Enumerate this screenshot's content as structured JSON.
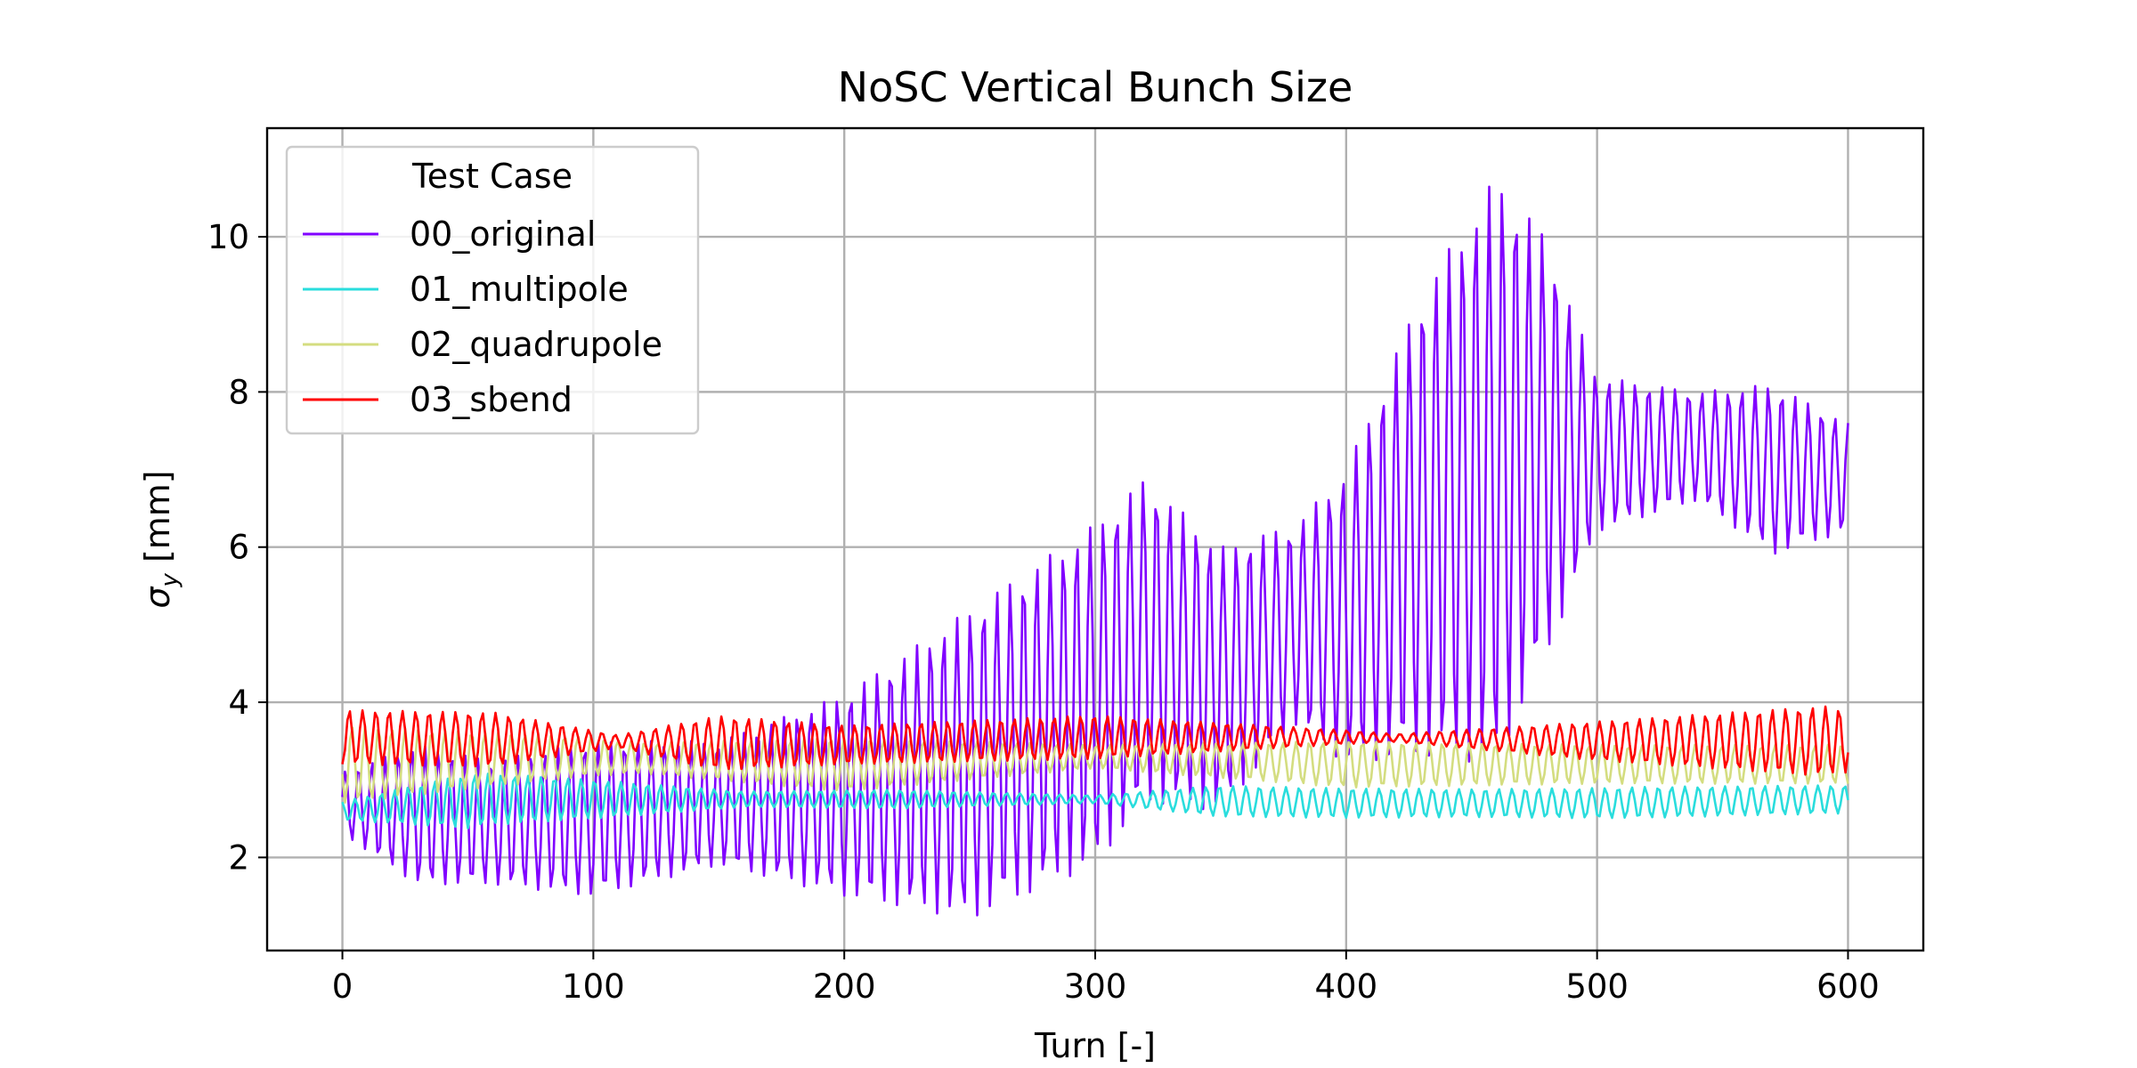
{
  "chart_data": {
    "type": "line",
    "title": "NoSC Vertical Bunch Size",
    "xlabel": "Turn [-]",
    "ylabel_symbol": "σ",
    "ylabel_sub": "y",
    "ylabel_unit": " [mm]",
    "xlim": [
      -30,
      630
    ],
    "ylim": [
      0.8,
      11.4
    ],
    "xticks": [
      0,
      100,
      200,
      300,
      400,
      500,
      600
    ],
    "yticks": [
      2,
      4,
      6,
      8,
      10
    ],
    "grid": true,
    "legend": {
      "title": "Test Case",
      "placement": "top-left"
    },
    "turn_range": [
      0,
      600
    ],
    "series": [
      {
        "name": "00_original",
        "color": "#8000ff",
        "oscillation_period_turns": 5.3,
        "envelope_center": [
          [
            0,
            2.7
          ],
          [
            30,
            2.55
          ],
          [
            60,
            2.45
          ],
          [
            100,
            2.5
          ],
          [
            150,
            2.7
          ],
          [
            200,
            2.8
          ],
          [
            250,
            3.2
          ],
          [
            300,
            4.1
          ],
          [
            320,
            4.8
          ],
          [
            350,
            4.3
          ],
          [
            380,
            5.0
          ],
          [
            400,
            5.1
          ],
          [
            430,
            6.3
          ],
          [
            460,
            7.0
          ],
          [
            480,
            7.3
          ],
          [
            500,
            7.2
          ],
          [
            540,
            7.3
          ],
          [
            570,
            7.0
          ],
          [
            600,
            6.9
          ]
        ],
        "envelope_amplitude": [
          [
            0,
            0.4
          ],
          [
            30,
            0.9
          ],
          [
            60,
            0.8
          ],
          [
            100,
            1.0
          ],
          [
            150,
            0.8
          ],
          [
            200,
            1.3
          ],
          [
            250,
            2.0
          ],
          [
            300,
            2.2
          ],
          [
            320,
            2.1
          ],
          [
            350,
            1.7
          ],
          [
            380,
            1.3
          ],
          [
            400,
            1.9
          ],
          [
            430,
            3.0
          ],
          [
            460,
            3.8
          ],
          [
            480,
            2.7
          ],
          [
            500,
            1.0
          ],
          [
            540,
            0.7
          ],
          [
            570,
            1.1
          ],
          [
            600,
            0.7
          ]
        ]
      },
      {
        "name": "01_multipole",
        "color": "#2adddd",
        "oscillation_period_turns": 5.3,
        "envelope_center": [
          [
            0,
            2.6
          ],
          [
            60,
            2.75
          ],
          [
            120,
            2.75
          ],
          [
            200,
            2.75
          ],
          [
            300,
            2.75
          ],
          [
            400,
            2.7
          ],
          [
            500,
            2.7
          ],
          [
            600,
            2.75
          ]
        ],
        "envelope_amplitude": [
          [
            0,
            0.12
          ],
          [
            50,
            0.35
          ],
          [
            100,
            0.25
          ],
          [
            160,
            0.1
          ],
          [
            220,
            0.12
          ],
          [
            300,
            0.05
          ],
          [
            350,
            0.2
          ],
          [
            450,
            0.18
          ],
          [
            520,
            0.2
          ],
          [
            600,
            0.18
          ]
        ]
      },
      {
        "name": "02_quadrupole",
        "color": "#d4dd80",
        "oscillation_period_turns": 5.3,
        "envelope_center": [
          [
            0,
            3.2
          ],
          [
            100,
            3.3
          ],
          [
            200,
            3.2
          ],
          [
            300,
            3.3
          ],
          [
            400,
            3.2
          ],
          [
            500,
            3.2
          ],
          [
            600,
            3.2
          ]
        ],
        "envelope_amplitude": [
          [
            0,
            0.5
          ],
          [
            60,
            0.35
          ],
          [
            120,
            0.2
          ],
          [
            200,
            0.35
          ],
          [
            300,
            0.15
          ],
          [
            400,
            0.3
          ],
          [
            500,
            0.25
          ],
          [
            600,
            0.25
          ]
        ]
      },
      {
        "name": "03_sbend",
        "color": "#ff0000",
        "oscillation_period_turns": 5.3,
        "envelope_center": [
          [
            0,
            3.55
          ],
          [
            100,
            3.5
          ],
          [
            200,
            3.45
          ],
          [
            300,
            3.55
          ],
          [
            400,
            3.55
          ],
          [
            500,
            3.5
          ],
          [
            600,
            3.5
          ]
        ],
        "envelope_amplitude": [
          [
            0,
            0.35
          ],
          [
            60,
            0.35
          ],
          [
            110,
            0.08
          ],
          [
            150,
            0.35
          ],
          [
            200,
            0.25
          ],
          [
            300,
            0.28
          ],
          [
            420,
            0.05
          ],
          [
            500,
            0.25
          ],
          [
            590,
            0.45
          ],
          [
            600,
            0.4
          ]
        ]
      }
    ]
  }
}
